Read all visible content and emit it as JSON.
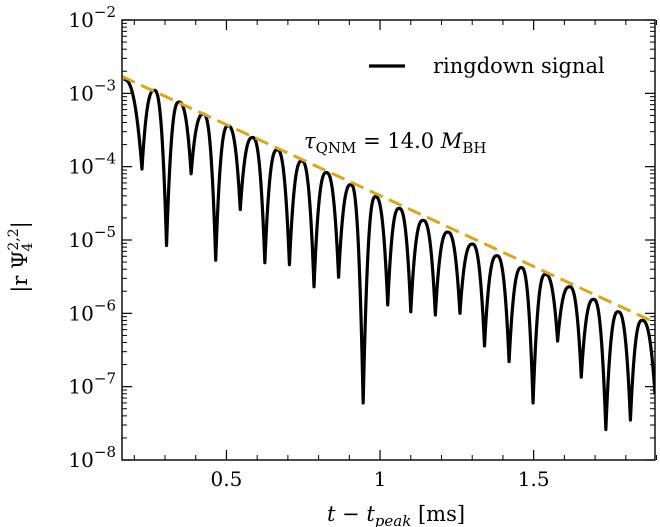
{
  "chart_data": {
    "type": "line",
    "xlabel": "t − t_peak [ms]",
    "xlabel_parts": {
      "main": "t − t",
      "sub": "peak",
      "unit": " [ms]"
    },
    "ylabel": "|r Ψ_4^{2,2}|",
    "ylabel_parts": {
      "main": "|r Ψ",
      "sub": "4",
      "sup": "2,2",
      "end": "|"
    },
    "xlim": [
      0.16,
      1.895
    ],
    "ylim": [
      1e-08,
      0.01
    ],
    "yscale": "log",
    "grid": false,
    "legend_position": "top-right",
    "x_ticks": [
      {
        "value": 0.5,
        "label": "0.5"
      },
      {
        "value": 1.0,
        "label": "1"
      },
      {
        "value": 1.5,
        "label": "1.5"
      }
    ],
    "y_ticks": [
      {
        "value": 1e-08,
        "base": "10",
        "exp": "−8"
      },
      {
        "value": 1e-07,
        "base": "10",
        "exp": "−7"
      },
      {
        "value": 1e-06,
        "base": "10",
        "exp": "−6"
      },
      {
        "value": 1e-05,
        "base": "10",
        "exp": "−5"
      },
      {
        "value": 0.0001,
        "base": "10",
        "exp": "−4"
      },
      {
        "value": 0.001,
        "base": "10",
        "exp": "−3"
      },
      {
        "value": 0.01,
        "base": "10",
        "exp": "−2"
      }
    ],
    "series": [
      {
        "name": "ringdown signal",
        "color": "#000000",
        "style": "solid",
        "description": "oscillating decaying waveform with deep nulls",
        "envelope_points": [
          [
            0.16,
            0.0017
          ],
          [
            1.895,
            7.5e-07
          ]
        ],
        "nulls": [
          [
            0.225,
            9.3e-05
          ],
          [
            0.305,
            8.4e-06
          ],
          [
            0.385,
            8e-05
          ],
          [
            0.465,
            5.3e-06
          ],
          [
            0.545,
            2.6e-05
          ],
          [
            0.625,
            4.9e-06
          ],
          [
            0.705,
            4.6e-06
          ],
          [
            0.785,
            2.3e-06
          ],
          [
            0.865,
            3.1e-06
          ],
          [
            0.945,
            6e-08
          ],
          [
            1.025,
            1.3e-06
          ],
          [
            1.1,
            1.05e-06
          ],
          [
            1.18,
            9.5e-07
          ],
          [
            1.26,
            1e-06
          ],
          [
            1.34,
            3.6e-07
          ],
          [
            1.42,
            2.2e-07
          ],
          [
            1.498,
            6e-08
          ],
          [
            1.578,
            4.2e-07
          ],
          [
            1.655,
            1.35e-07
          ],
          [
            1.735,
            2.6e-08
          ],
          [
            1.815,
            3.5e-08
          ]
        ],
        "crests": [
          [
            0.165,
            0.00155
          ],
          [
            0.265,
            0.0011
          ],
          [
            0.345,
            0.00076
          ],
          [
            0.425,
            0.00052
          ],
          [
            0.505,
            0.00036
          ],
          [
            0.585,
            0.00025
          ],
          [
            0.665,
            0.00017
          ],
          [
            0.745,
            0.00012
          ],
          [
            0.825,
            8.3e-05
          ],
          [
            0.905,
            5.7e-05
          ],
          [
            0.985,
            3.9e-05
          ],
          [
            1.062,
            2.7e-05
          ],
          [
            1.14,
            1.85e-05
          ],
          [
            1.22,
            1.28e-05
          ],
          [
            1.3,
            8.8e-06
          ],
          [
            1.38,
            6.1e-06
          ],
          [
            1.46,
            4.2e-06
          ],
          [
            1.538,
            3.4e-06
          ],
          [
            1.617,
            2.3e-06
          ],
          [
            1.695,
            1.55e-06
          ],
          [
            1.775,
            1.05e-06
          ],
          [
            1.853,
            8e-07
          ]
        ],
        "tail_end": [
          1.895,
          8e-08
        ]
      },
      {
        "name": "",
        "color": "#DAA520",
        "style": "dashed",
        "points": [
          [
            0.16,
            0.0017
          ],
          [
            1.895,
            7.5e-07
          ]
        ]
      }
    ],
    "annotation": {
      "tau": "τ",
      "tau_sub": "QNM",
      "eq": " = 14.0 ",
      "m": "M",
      "m_sub": "BH"
    },
    "legend": [
      {
        "label": "ringdown signal",
        "color": "#000000"
      }
    ]
  }
}
